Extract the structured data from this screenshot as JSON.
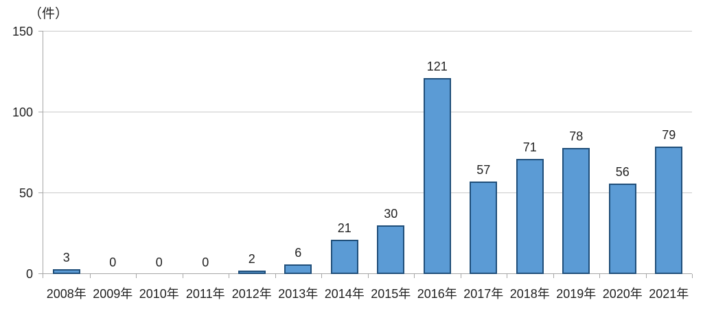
{
  "chart_data": {
    "type": "bar",
    "unit_label": "（件）",
    "categories": [
      "2008年",
      "2009年",
      "2010年",
      "2011年",
      "2012年",
      "2013年",
      "2014年",
      "2015年",
      "2016年",
      "2017年",
      "2018年",
      "2019年",
      "2020年",
      "2021年"
    ],
    "values": [
      3,
      0,
      0,
      0,
      2,
      6,
      21,
      30,
      121,
      57,
      71,
      78,
      56,
      79
    ],
    "yticks": [
      0,
      50,
      100,
      150
    ],
    "ylim": [
      0,
      150
    ],
    "grid": true,
    "legend": "none",
    "data_labels": true,
    "colors": {
      "bar_fill": "#5B9BD5",
      "bar_border": "#1F4E79",
      "gridline": "#C9C9C9",
      "axis": "#A6A6A6",
      "text": "#1F1F1F"
    }
  }
}
